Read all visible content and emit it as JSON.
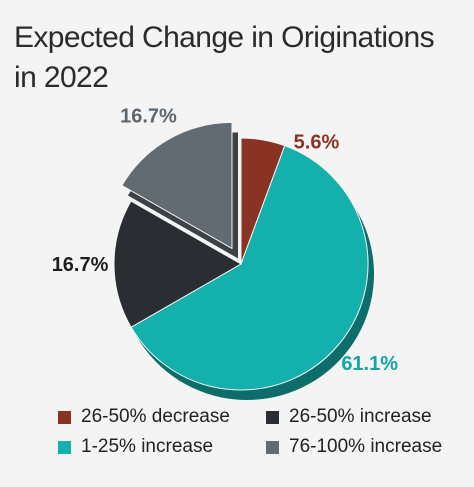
{
  "chart_data": {
    "type": "pie",
    "title": "Expected Change in Originations in 2022",
    "title_lines": [
      "Expected Change in Originations",
      "in 2022"
    ],
    "slices": [
      {
        "label": "26-50% decrease",
        "value": 5.6,
        "display": "5.6%",
        "color": "#8a3324",
        "label_color": "#8a3324"
      },
      {
        "label": "1-25% increase",
        "value": 61.1,
        "display": "61.1%",
        "color": "#13b0ac",
        "label_color": "#11a6a4"
      },
      {
        "label": "26-50% increase",
        "value": 16.7,
        "display": "16.7%",
        "color": "#2a2d31",
        "label_color": "#1f1f1f"
      },
      {
        "label": "76-100% increase",
        "value": 16.7,
        "display": "16.7%",
        "color": "#636b72",
        "label_color": "#5e666d"
      }
    ],
    "exploded_slice": "76-100% increase",
    "legend_placement": "bottom",
    "legend_order": [
      "26-50% decrease",
      "26-50% increase",
      "1-25% increase",
      "76-100% increase"
    ]
  }
}
